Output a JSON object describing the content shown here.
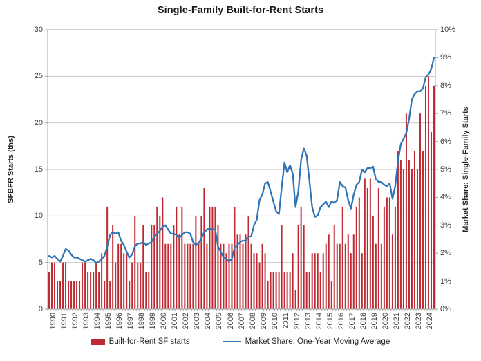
{
  "chart_data": {
    "type": "bar+line",
    "title": "Single-Family Built-for-Rent Starts",
    "frequency": "quarterly",
    "years": [
      "1990",
      "1991",
      "1992",
      "1993",
      "1994",
      "1995",
      "1996",
      "1997",
      "1998",
      "1999",
      "2000",
      "2001",
      "2002",
      "2003",
      "2004",
      "2005",
      "2006",
      "2007",
      "2008",
      "2009",
      "2010",
      "2011",
      "2012",
      "2013",
      "2014",
      "2015",
      "2016",
      "2017",
      "2018",
      "2019",
      "2020",
      "2021",
      "2022",
      "2023",
      "2024"
    ],
    "left_axis": {
      "label": "SFBFR Starts (ths)",
      "min": 0,
      "max": 30,
      "tick_step": 5,
      "ticks": [
        "30",
        "25",
        "20",
        "15",
        "10",
        "5",
        "0"
      ]
    },
    "right_axis": {
      "label": "Market Share: Single-Family Starts",
      "min": 0,
      "max": 10,
      "tick_step": 1,
      "ticks": [
        "10%",
        "9%",
        "8%",
        "7%",
        "6%",
        "5%",
        "4%",
        "3%",
        "2%",
        "1%",
        "0%"
      ]
    },
    "grid": {
      "show_horizontal": true,
      "color": "#c9c9c9"
    },
    "legend_position": "bottom",
    "series": [
      {
        "name": "Built-for-Rent SF starts",
        "type": "bar",
        "axis": "left",
        "color": "#be2a33",
        "values": [
          4,
          5,
          5,
          3,
          3,
          5,
          5,
          3,
          3,
          3,
          3,
          3,
          5,
          5,
          4,
          4,
          4,
          5,
          4,
          6,
          3,
          11,
          3,
          9,
          5,
          7,
          7,
          6,
          6,
          3,
          5,
          10,
          5,
          5,
          9,
          4,
          4,
          9,
          9,
          11,
          10,
          12,
          7,
          7,
          7,
          9,
          11,
          8,
          11,
          7,
          7,
          7,
          7,
          10,
          7,
          10,
          13,
          7,
          11,
          11,
          11,
          9,
          7,
          7,
          6,
          7,
          7,
          11,
          8,
          8,
          7,
          8,
          10,
          7,
          6,
          6,
          5,
          7,
          6,
          3,
          4,
          4,
          4,
          4,
          9,
          4,
          4,
          4,
          6,
          2,
          9,
          11,
          9,
          4,
          4,
          6,
          6,
          6,
          4,
          6,
          7,
          8,
          3,
          9,
          7,
          7,
          11,
          7,
          8,
          6,
          8,
          11,
          12,
          6,
          14,
          13,
          14,
          10,
          7,
          13,
          7,
          11,
          12,
          12,
          8,
          11,
          17,
          16,
          15,
          21,
          16,
          15,
          17,
          15,
          21,
          17,
          24,
          25,
          19,
          24
        ]
      },
      {
        "name": "Market Share: One-Year Moving Average",
        "type": "line",
        "axis": "right",
        "color": "#2e74b6",
        "values": [
          1.9,
          1.85,
          1.9,
          1.8,
          1.7,
          1.9,
          2.15,
          2.1,
          1.95,
          1.85,
          1.85,
          1.8,
          1.75,
          1.7,
          1.75,
          1.8,
          1.75,
          1.65,
          1.7,
          1.8,
          1.9,
          2.25,
          2.65,
          2.75,
          2.7,
          2.75,
          2.45,
          2.3,
          2.05,
          1.85,
          1.95,
          2.25,
          2.35,
          2.35,
          2.4,
          2.3,
          2.35,
          2.4,
          2.6,
          2.7,
          2.8,
          2.95,
          3.0,
          2.85,
          2.7,
          2.7,
          2.65,
          2.55,
          2.65,
          2.75,
          2.75,
          2.7,
          2.4,
          2.3,
          2.35,
          2.55,
          2.75,
          2.85,
          2.9,
          2.85,
          2.85,
          2.25,
          2.05,
          1.85,
          1.8,
          1.7,
          1.8,
          2.2,
          2.3,
          2.4,
          2.45,
          2.45,
          2.6,
          2.6,
          3.0,
          3.2,
          3.9,
          4.1,
          4.5,
          4.55,
          4.2,
          3.85,
          3.5,
          3.4,
          4.35,
          5.25,
          4.9,
          5.15,
          4.85,
          3.65,
          4.2,
          5.35,
          5.75,
          5.5,
          4.6,
          3.65,
          3.3,
          3.35,
          3.65,
          3.75,
          3.85,
          3.65,
          3.85,
          3.8,
          3.9,
          4.55,
          4.4,
          4.35,
          3.9,
          3.6,
          4.1,
          4.45,
          4.55,
          5.0,
          4.9,
          5.05,
          5.05,
          5.1,
          4.65,
          4.55,
          4.55,
          4.45,
          4.4,
          4.5,
          3.95,
          4.4,
          5.3,
          5.9,
          6.1,
          6.3,
          6.8,
          7.5,
          7.7,
          7.8,
          7.8,
          7.9,
          8.3,
          8.4,
          8.6,
          9.0
        ]
      }
    ]
  },
  "styles": {
    "spine_color": "#a6a6a6",
    "tick_color": "#a6a6a6",
    "grid_color": "#c9c9c9",
    "tick_label_color": "#3f3f3f",
    "title_color": "#1a1a1a",
    "bar_color": "#be2a33",
    "line_color": "#2e74b6"
  }
}
